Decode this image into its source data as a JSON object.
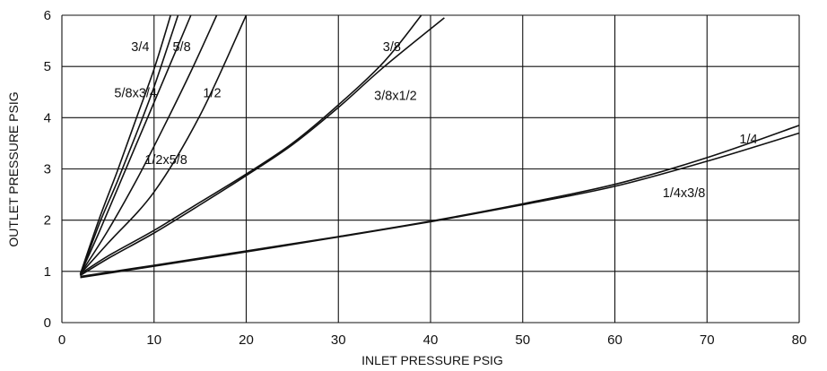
{
  "chart_data": {
    "type": "line",
    "title": "",
    "xlabel": "INLET  PRESSURE PSIG",
    "ylabel": "OUTLET PRESSURE PSIG",
    "xlim": [
      0,
      80
    ],
    "ylim": [
      0,
      6
    ],
    "x_ticks": [
      "0",
      "10",
      "20",
      "30",
      "40",
      "50",
      "60",
      "70",
      "80"
    ],
    "y_ticks": [
      "0",
      "1",
      "2",
      "3",
      "4",
      "5",
      "6"
    ],
    "grid": true,
    "legend": "none",
    "series": [
      {
        "name": "1/4",
        "x": [
          2,
          10,
          20,
          30,
          40,
          50,
          60,
          70,
          80
        ],
        "y": [
          0.9,
          1.12,
          1.4,
          1.68,
          1.98,
          2.32,
          2.7,
          3.22,
          3.85
        ]
      },
      {
        "name": "1/4x3/8",
        "x": [
          2,
          10,
          20,
          30,
          40,
          50,
          60,
          70,
          80
        ],
        "y": [
          0.88,
          1.1,
          1.38,
          1.67,
          1.97,
          2.3,
          2.66,
          3.15,
          3.7
        ]
      },
      {
        "name": "3/8",
        "x": [
          2,
          5,
          10,
          15,
          20,
          25,
          30,
          35,
          39
        ],
        "y": [
          0.95,
          1.3,
          1.8,
          2.35,
          2.9,
          3.5,
          4.25,
          5.1,
          6.0
        ]
      },
      {
        "name": "3/8x1/2",
        "x": [
          2,
          5,
          10,
          15,
          20,
          25,
          30,
          35,
          41.5
        ],
        "y": [
          0.92,
          1.25,
          1.75,
          2.3,
          2.87,
          3.47,
          4.2,
          5.0,
          5.95
        ]
      },
      {
        "name": "1/2",
        "x": [
          2,
          5,
          10,
          15,
          20
        ],
        "y": [
          0.95,
          1.55,
          2.55,
          4.05,
          6.0
        ]
      },
      {
        "name": "1/2x5/8",
        "x": [
          2,
          5,
          8,
          11,
          14,
          16.8
        ],
        "y": [
          0.95,
          1.8,
          2.75,
          3.8,
          4.9,
          6.0
        ]
      },
      {
        "name": "5/8",
        "x": [
          2,
          4,
          6,
          8,
          10,
          12,
          14
        ],
        "y": [
          0.95,
          1.75,
          2.6,
          3.45,
          4.3,
          5.15,
          6.0
        ]
      },
      {
        "name": "5/8x3/4",
        "x": [
          2,
          4,
          6,
          8,
          10,
          12.6
        ],
        "y": [
          0.92,
          1.9,
          2.75,
          3.65,
          4.6,
          6.0
        ]
      },
      {
        "name": "3/4",
        "x": [
          2,
          4,
          6,
          8,
          10,
          11.8
        ],
        "y": [
          0.95,
          2.0,
          2.95,
          3.95,
          4.95,
          6.0
        ]
      }
    ],
    "annotations": [
      {
        "text": "3/4",
        "x": 8.5,
        "y": 5.3
      },
      {
        "text": "5/8",
        "x": 13.0,
        "y": 5.3
      },
      {
        "text": "5/8x3/4",
        "x": 8.0,
        "y": 4.4
      },
      {
        "text": "1/2",
        "x": 16.3,
        "y": 4.4
      },
      {
        "text": "1/2x5/8",
        "x": 11.3,
        "y": 3.1
      },
      {
        "text": "3/8",
        "x": 35.8,
        "y": 5.3
      },
      {
        "text": "3/8x1/2",
        "x": 36.2,
        "y": 4.35
      },
      {
        "text": "1/4",
        "x": 74.5,
        "y": 3.5
      },
      {
        "text": "1/4x3/8",
        "x": 67.5,
        "y": 2.45
      }
    ]
  }
}
